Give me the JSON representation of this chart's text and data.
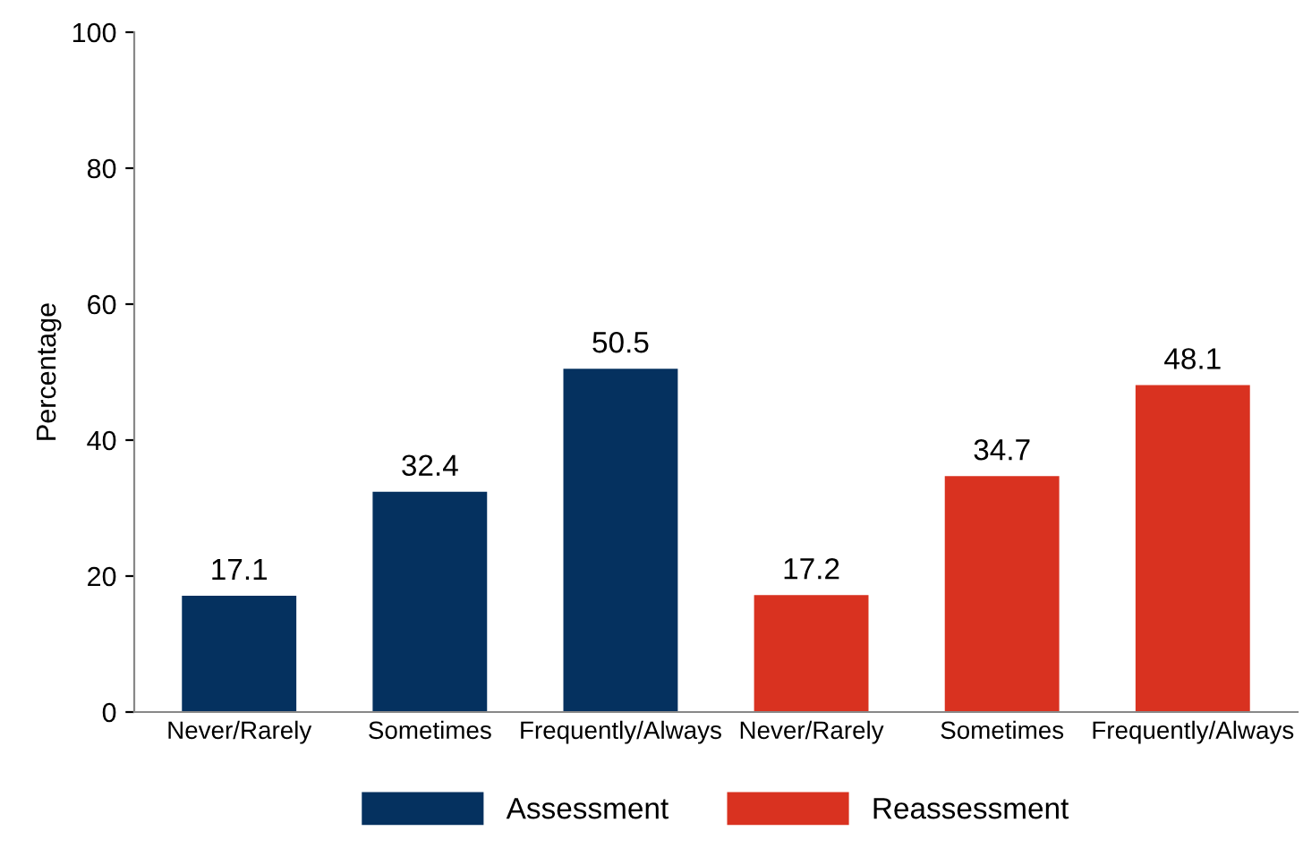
{
  "chart_data": {
    "type": "bar",
    "ylabel": "Percentage",
    "categories": [
      "Never/Rarely",
      "Sometimes",
      "Frequently/Always",
      "Never/Rarely",
      "Sometimes",
      "Frequently/Always"
    ],
    "series": [
      {
        "name": "Assessment",
        "color": "#05315f",
        "values": [
          17.1,
          32.4,
          50.5,
          null,
          null,
          null
        ]
      },
      {
        "name": "Reassessment",
        "color": "#d93220",
        "values": [
          null,
          null,
          null,
          17.2,
          34.7,
          48.1
        ]
      }
    ],
    "ylim": [
      0,
      100
    ],
    "yticks": [
      0,
      20,
      40,
      60,
      80,
      100
    ],
    "grid": false,
    "legend": "bottom",
    "data_labels": true
  }
}
